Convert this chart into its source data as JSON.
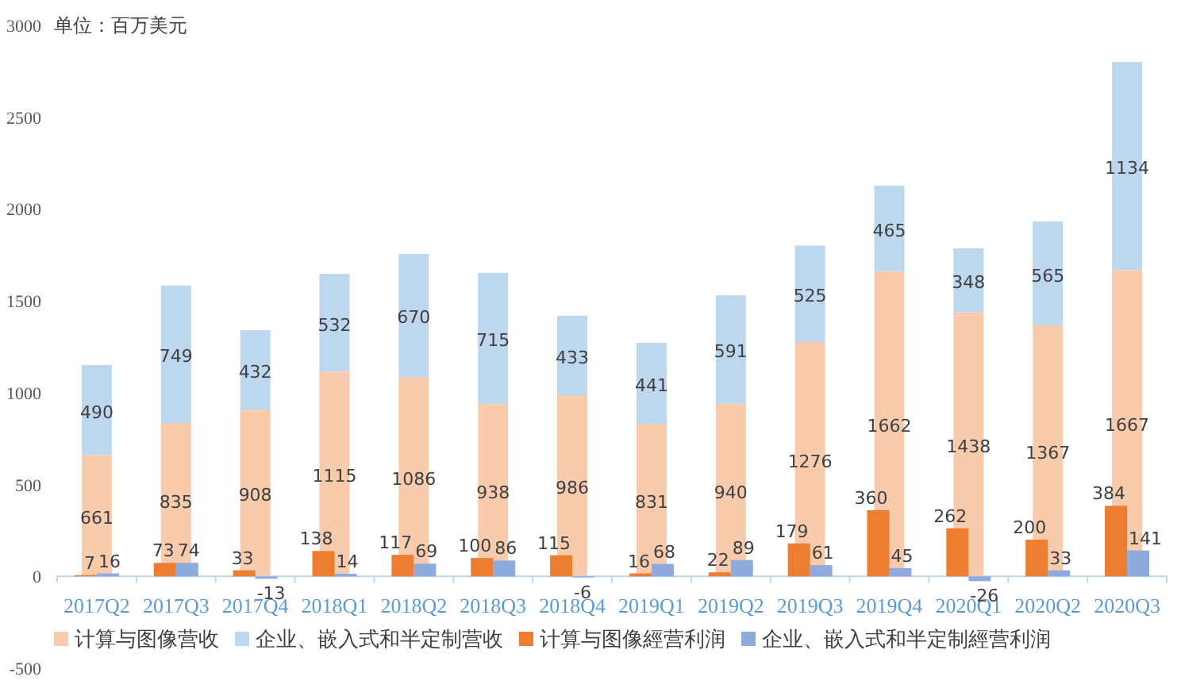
{
  "chart_data": [
    {
      "type": "bar",
      "annotations": [
        "单位：百万美元"
      ],
      "categories": [
        "2017Q2",
        "2017Q3",
        "2017Q4",
        "2018Q1",
        "2018Q2",
        "2018Q3",
        "2018Q4",
        "2019Q1",
        "2019Q2",
        "2019Q3",
        "2019Q4",
        "2020Q1",
        "2020Q2",
        "2020Q3"
      ],
      "stacked": true,
      "series": [
        {
          "name": "计算与图像营收",
          "color": "#f8cbad",
          "values": [
            661,
            835,
            908,
            1115,
            1086,
            938,
            986,
            831,
            940,
            1276,
            1662,
            1438,
            1367,
            1667
          ]
        },
        {
          "name": "企业、嵌入式和半定制营收",
          "color": "#bdd7ee",
          "values": [
            490,
            749,
            432,
            532,
            670,
            715,
            433,
            441,
            591,
            525,
            465,
            348,
            565,
            1134
          ]
        }
      ],
      "ylim": [
        -500,
        3000
      ],
      "yticks": [
        -500,
        0,
        500,
        1000,
        1500,
        2000,
        2500,
        3000
      ],
      "data_labels": true,
      "legend": "bottom",
      "grid": false
    },
    {
      "type": "bar",
      "categories": [
        null,
        null,
        null,
        null,
        null,
        null,
        null,
        null,
        null,
        null,
        null,
        null,
        null,
        null
      ],
      "series": [
        {
          "name": "计算与图像經营利润",
          "color": "#ed7d31",
          "values": [
            7,
            73,
            33,
            138,
            117,
            100,
            115,
            16,
            22,
            179,
            360,
            262,
            200,
            384
          ]
        },
        {
          "name": "企业、嵌入式和半定制經营利润",
          "color": "#8faadc",
          "values": [
            16,
            74,
            -13,
            14,
            69,
            86,
            -6,
            68,
            89,
            61,
            45,
            -26,
            33,
            141
          ]
        }
      ],
      "ylim": [
        -500,
        3000
      ],
      "tick_labels": false,
      "data_labels": true,
      "legend": "bottom",
      "grid": false
    }
  ]
}
